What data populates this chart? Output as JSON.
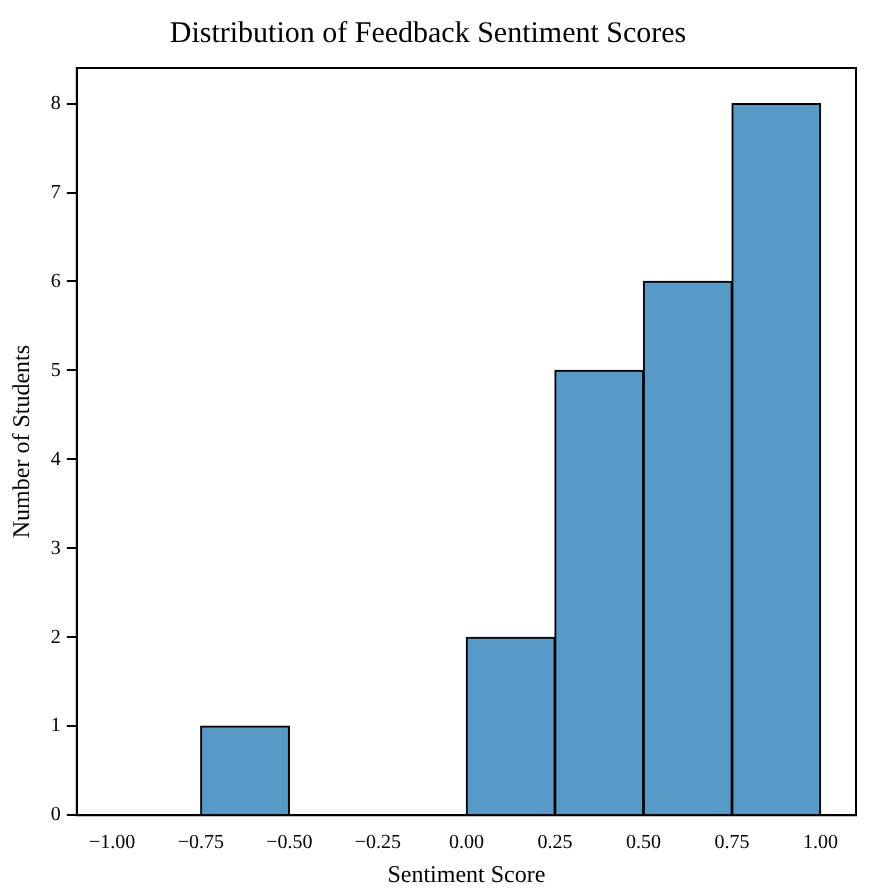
{
  "chart_data": {
    "type": "histogram",
    "title": "Distribution of Feedback Sentiment Scores",
    "xlabel": "Sentiment Score",
    "ylabel": "Number of Students",
    "bins": [
      -1,
      -0.75,
      -0.5,
      -0.25,
      0,
      0.25,
      0.5,
      0.75,
      1
    ],
    "values": [
      0,
      1,
      0,
      0,
      2,
      5,
      6,
      8
    ],
    "color": "#5799c7",
    "xlim": [
      -1.1,
      1.1
    ],
    "xticks": [
      {
        "value": -1,
        "label": "−1.00"
      },
      {
        "value": -0.75,
        "label": "−0.75"
      },
      {
        "value": -0.5,
        "label": "−0.50"
      },
      {
        "value": -0.25,
        "label": "−0.25"
      },
      {
        "value": 0,
        "label": "0.00"
      },
      {
        "value": 0.25,
        "label": "0.25"
      },
      {
        "value": 0.5,
        "label": "0.50"
      },
      {
        "value": 0.75,
        "label": "0.75"
      },
      {
        "value": 1,
        "label": "1.00"
      }
    ],
    "ylim": [
      0,
      8.4
    ],
    "yticks": [
      0,
      1,
      2,
      3,
      4,
      5,
      6,
      7,
      8
    ],
    "grid": false,
    "legend": false
  }
}
